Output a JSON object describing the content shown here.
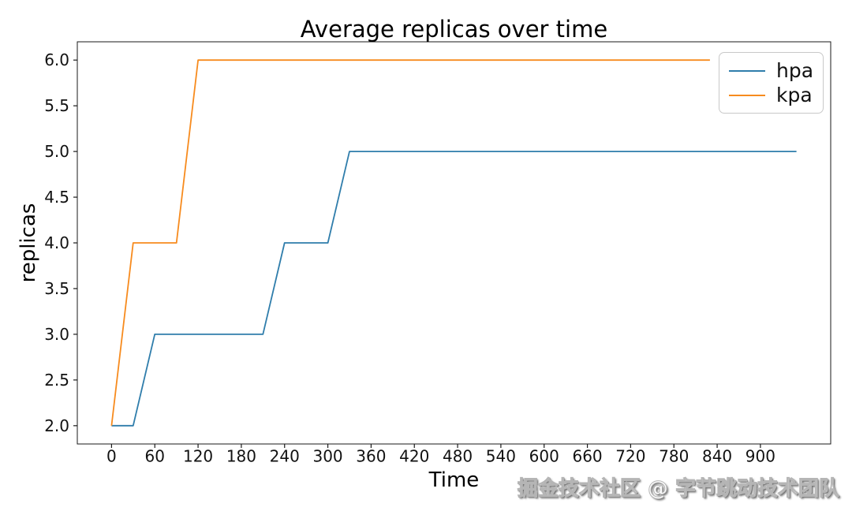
{
  "chart_data": {
    "type": "line",
    "title": "Average replicas over time",
    "xlabel": "Time",
    "ylabel": "replicas",
    "xlim": [
      -47.5,
      997.5
    ],
    "ylim": [
      1.8,
      6.2
    ],
    "xticks": [
      0,
      60,
      120,
      180,
      240,
      300,
      360,
      420,
      480,
      540,
      600,
      660,
      720,
      780,
      840,
      900
    ],
    "yticks": [
      2.0,
      2.5,
      3.0,
      3.5,
      4.0,
      4.5,
      5.0,
      5.5,
      6.0
    ],
    "ytick_labels": [
      "2.0",
      "2.5",
      "3.0",
      "3.5",
      "4.0",
      "4.5",
      "5.0",
      "5.5",
      "6.0"
    ],
    "grid": false,
    "axis_color": "#1a1a1a",
    "text_color": "#111111",
    "legend": {
      "position": "upper-right",
      "entries": [
        "hpa",
        "kpa"
      ]
    },
    "series": [
      {
        "name": "hpa",
        "color": "#2f7dab",
        "points": [
          [
            0,
            2
          ],
          [
            30,
            2
          ],
          [
            60,
            3
          ],
          [
            210,
            3
          ],
          [
            240,
            4
          ],
          [
            300,
            4
          ],
          [
            330,
            5
          ],
          [
            950,
            5
          ]
        ]
      },
      {
        "name": "kpa",
        "color": "#f78b1e",
        "points": [
          [
            0,
            2
          ],
          [
            30,
            4
          ],
          [
            90,
            4
          ],
          [
            120,
            6
          ],
          [
            830,
            6
          ]
        ]
      }
    ]
  },
  "watermark": {
    "text": "掘金技术社区 @ 字节跳动技术团队"
  }
}
